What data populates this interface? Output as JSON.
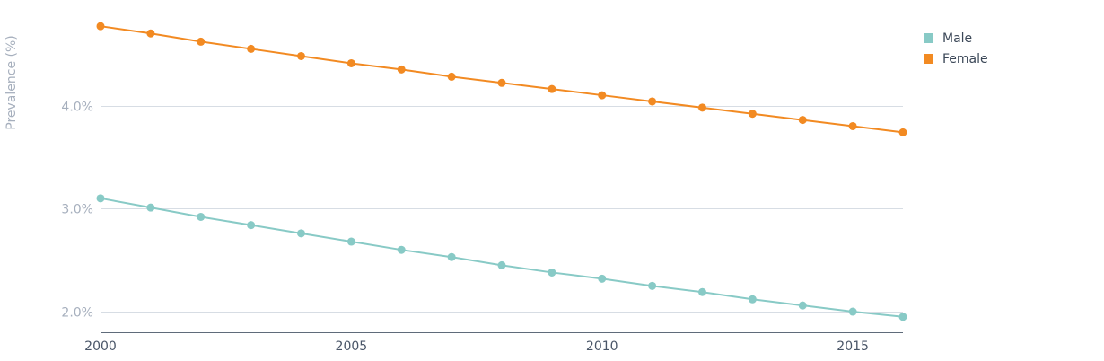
{
  "chart_data": {
    "type": "line",
    "title": "",
    "xlabel": "",
    "ylabel": "Prevalence (%)",
    "x": [
      2000,
      2001,
      2002,
      2003,
      2004,
      2005,
      2006,
      2007,
      2008,
      2009,
      2010,
      2011,
      2012,
      2013,
      2014,
      2015,
      2016
    ],
    "xlim": [
      2000,
      2016
    ],
    "xticks": [
      2000,
      2005,
      2010,
      2015
    ],
    "xtick_labels": [
      "2000",
      "2005",
      "2010",
      "2015"
    ],
    "ylim": [
      1.8,
      4.85
    ],
    "yticks": [
      2.0,
      3.0,
      4.0
    ],
    "ytick_labels": [
      "2.0%",
      "3.0%",
      "4.0%"
    ],
    "grid": true,
    "legend_position": "top-right",
    "series": [
      {
        "name": "Male",
        "color": "#88cac6",
        "values": [
          3.1,
          3.01,
          2.92,
          2.84,
          2.76,
          2.68,
          2.6,
          2.53,
          2.45,
          2.38,
          2.32,
          2.25,
          2.19,
          2.12,
          2.06,
          2.0,
          1.95
        ]
      },
      {
        "name": "Female",
        "color": "#f28a22",
        "values": [
          4.77,
          4.7,
          4.62,
          4.55,
          4.48,
          4.41,
          4.35,
          4.28,
          4.22,
          4.16,
          4.1,
          4.04,
          3.98,
          3.92,
          3.86,
          3.8,
          3.74
        ]
      }
    ]
  }
}
